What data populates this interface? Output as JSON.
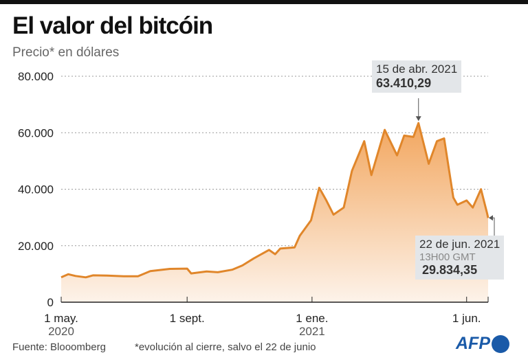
{
  "title": "El valor del bitcóin",
  "subtitle": "Precio* en dólares",
  "source": "Fuente: Blooomberg",
  "note": "*evolución al cierre, salvo el 22 de junio",
  "logo": "AFP",
  "colors": {
    "line": "#e0862a",
    "fill_top": "#f2a65e",
    "fill_bottom": "#fdf3ea",
    "annotation_bg": "#e3e6e9",
    "logo": "#1a5aa8"
  },
  "chart_data": {
    "type": "area",
    "title": "El valor del bitcóin",
    "ylabel": "Precio* en dólares",
    "ylim": [
      0,
      80000
    ],
    "grid": "dotted horizontal",
    "yticks": [
      "0",
      "20.000",
      "40.000",
      "60.000",
      "80.000"
    ],
    "yticks_values": [
      0,
      20000,
      40000,
      60000,
      80000
    ],
    "xticks": [
      {
        "date": "2020-05-01",
        "label": "1 may.",
        "year": "2020"
      },
      {
        "date": "2020-09-01",
        "label": "1 sept.",
        "year": ""
      },
      {
        "date": "2021-01-01",
        "label": "1 ene.",
        "year": "2021"
      },
      {
        "date": "2021-06-01",
        "label": "1 jun.",
        "year": ""
      }
    ],
    "xlim": [
      "2020-05-01",
      "2021-06-22"
    ],
    "points": [
      [
        "2020-05-01",
        8800
      ],
      [
        "2020-05-08",
        9900
      ],
      [
        "2020-05-15",
        9300
      ],
      [
        "2020-05-25",
        8800
      ],
      [
        "2020-06-01",
        9500
      ],
      [
        "2020-06-15",
        9400
      ],
      [
        "2020-07-01",
        9200
      ],
      [
        "2020-07-15",
        9200
      ],
      [
        "2020-07-27",
        11000
      ],
      [
        "2020-08-15",
        11800
      ],
      [
        "2020-09-01",
        11900
      ],
      [
        "2020-09-05",
        10200
      ],
      [
        "2020-09-20",
        10900
      ],
      [
        "2020-10-01",
        10600
      ],
      [
        "2020-10-15",
        11500
      ],
      [
        "2020-10-25",
        13000
      ],
      [
        "2020-11-05",
        15500
      ],
      [
        "2020-11-20",
        18500
      ],
      [
        "2020-11-26",
        17000
      ],
      [
        "2020-12-01",
        19000
      ],
      [
        "2020-12-15",
        19400
      ],
      [
        "2020-12-20",
        23500
      ],
      [
        "2020-12-31",
        29000
      ],
      [
        "2021-01-08",
        40500
      ],
      [
        "2021-01-15",
        36000
      ],
      [
        "2021-01-22",
        31000
      ],
      [
        "2021-02-01",
        33500
      ],
      [
        "2021-02-09",
        46500
      ],
      [
        "2021-02-21",
        57000
      ],
      [
        "2021-02-28",
        45000
      ],
      [
        "2021-03-13",
        61000
      ],
      [
        "2021-03-25",
        52000
      ],
      [
        "2021-04-01",
        59000
      ],
      [
        "2021-04-10",
        58500
      ],
      [
        "2021-04-15",
        63410.29
      ],
      [
        "2021-04-25",
        49000
      ],
      [
        "2021-05-03",
        57000
      ],
      [
        "2021-05-10",
        58000
      ],
      [
        "2021-05-19",
        37000
      ],
      [
        "2021-05-23",
        34500
      ],
      [
        "2021-06-01",
        36000
      ],
      [
        "2021-06-07",
        33500
      ],
      [
        "2021-06-15",
        40000
      ],
      [
        "2021-06-21",
        31500
      ],
      [
        "2021-06-22",
        29834.35
      ]
    ],
    "annotations": [
      {
        "date": "2021-04-15",
        "label": "15 de abr. 2021",
        "value": "63.410,29"
      },
      {
        "date": "2021-06-22",
        "label": "22 de jun. 2021",
        "time": "13H00 GMT",
        "value": "29.834,35"
      }
    ]
  }
}
